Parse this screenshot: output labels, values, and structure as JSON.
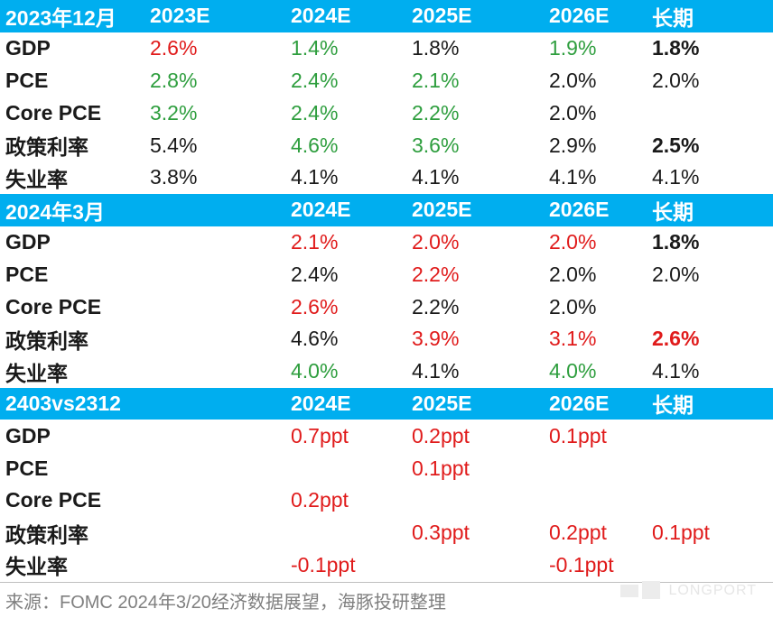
{
  "sections": [
    {
      "header": [
        "2023年12月",
        "2023E",
        "2024E",
        "2025E",
        "2026E",
        "长期"
      ],
      "rows": [
        {
          "label": "GDP",
          "cells": [
            "2.6%",
            "1.4%",
            "1.8%",
            "1.9%",
            "1.8%"
          ],
          "styles": [
            "r",
            "g",
            "k",
            "g",
            "b"
          ]
        },
        {
          "label": "PCE",
          "cells": [
            "2.8%",
            "2.4%",
            "2.1%",
            "2.0%",
            "2.0%"
          ],
          "styles": [
            "g",
            "g",
            "g",
            "k",
            "k"
          ]
        },
        {
          "label": "Core PCE",
          "cells": [
            "3.2%",
            "2.4%",
            "2.2%",
            "2.0%",
            ""
          ],
          "styles": [
            "g",
            "g",
            "g",
            "k",
            "k"
          ]
        },
        {
          "label": "政策利率",
          "cells": [
            "5.4%",
            "4.6%",
            "3.6%",
            "2.9%",
            "2.5%"
          ],
          "styles": [
            "k",
            "g",
            "g",
            "k",
            "b"
          ]
        },
        {
          "label": "失业率",
          "cells": [
            "3.8%",
            "4.1%",
            "4.1%",
            "4.1%",
            "4.1%"
          ],
          "styles": [
            "k",
            "k",
            "k",
            "k",
            "k"
          ]
        }
      ]
    },
    {
      "header": [
        "2024年3月",
        "",
        "2024E",
        "2025E",
        "2026E",
        "长期"
      ],
      "rows": [
        {
          "label": "GDP",
          "cells": [
            "",
            "2.1%",
            "2.0%",
            "2.0%",
            "1.8%"
          ],
          "styles": [
            "k",
            "r",
            "r",
            "r",
            "b"
          ]
        },
        {
          "label": "PCE",
          "cells": [
            "",
            "2.4%",
            "2.2%",
            "2.0%",
            "2.0%"
          ],
          "styles": [
            "k",
            "k",
            "r",
            "k",
            "k"
          ]
        },
        {
          "label": "Core PCE",
          "cells": [
            "",
            "2.6%",
            "2.2%",
            "2.0%",
            ""
          ],
          "styles": [
            "k",
            "r",
            "k",
            "k",
            "k"
          ]
        },
        {
          "label": "政策利率",
          "cells": [
            "",
            "4.6%",
            "3.9%",
            "3.1%",
            "2.6%"
          ],
          "styles": [
            "k",
            "k",
            "r",
            "r",
            "rb"
          ]
        },
        {
          "label": "失业率",
          "cells": [
            "",
            "4.0%",
            "4.1%",
            "4.0%",
            "4.1%"
          ],
          "styles": [
            "k",
            "g",
            "k",
            "g",
            "k"
          ]
        }
      ]
    },
    {
      "header": [
        "2403vs2312",
        "",
        "2024E",
        "2025E",
        "2026E",
        "长期"
      ],
      "rows": [
        {
          "label": "GDP",
          "cells": [
            "",
            "0.7ppt",
            "0.2ppt",
            "0.1ppt",
            ""
          ],
          "styles": [
            "k",
            "r",
            "r",
            "r",
            "r"
          ]
        },
        {
          "label": "PCE",
          "cells": [
            "",
            "",
            "0.1ppt",
            "",
            ""
          ],
          "styles": [
            "k",
            "r",
            "r",
            "r",
            "r"
          ]
        },
        {
          "label": "Core PCE",
          "cells": [
            "",
            "0.2ppt",
            "",
            "",
            ""
          ],
          "styles": [
            "k",
            "r",
            "r",
            "r",
            "r"
          ]
        },
        {
          "label": "政策利率",
          "cells": [
            "",
            "",
            "0.3ppt",
            "0.2ppt",
            "0.1ppt"
          ],
          "styles": [
            "k",
            "r",
            "r",
            "r",
            "r"
          ]
        },
        {
          "label": "失业率",
          "cells": [
            "",
            "-0.1ppt",
            "",
            "-0.1ppt",
            ""
          ],
          "styles": [
            "k",
            "r",
            "r",
            "r",
            "r"
          ]
        }
      ]
    }
  ],
  "source": "来源：FOMC 2024年3/20经济数据展望，海豚投研整理",
  "watermark": "LONGPORT",
  "colors": {
    "header_bg": "#00aeef",
    "green": "#2e9e3e",
    "red": "#e01b1b"
  }
}
